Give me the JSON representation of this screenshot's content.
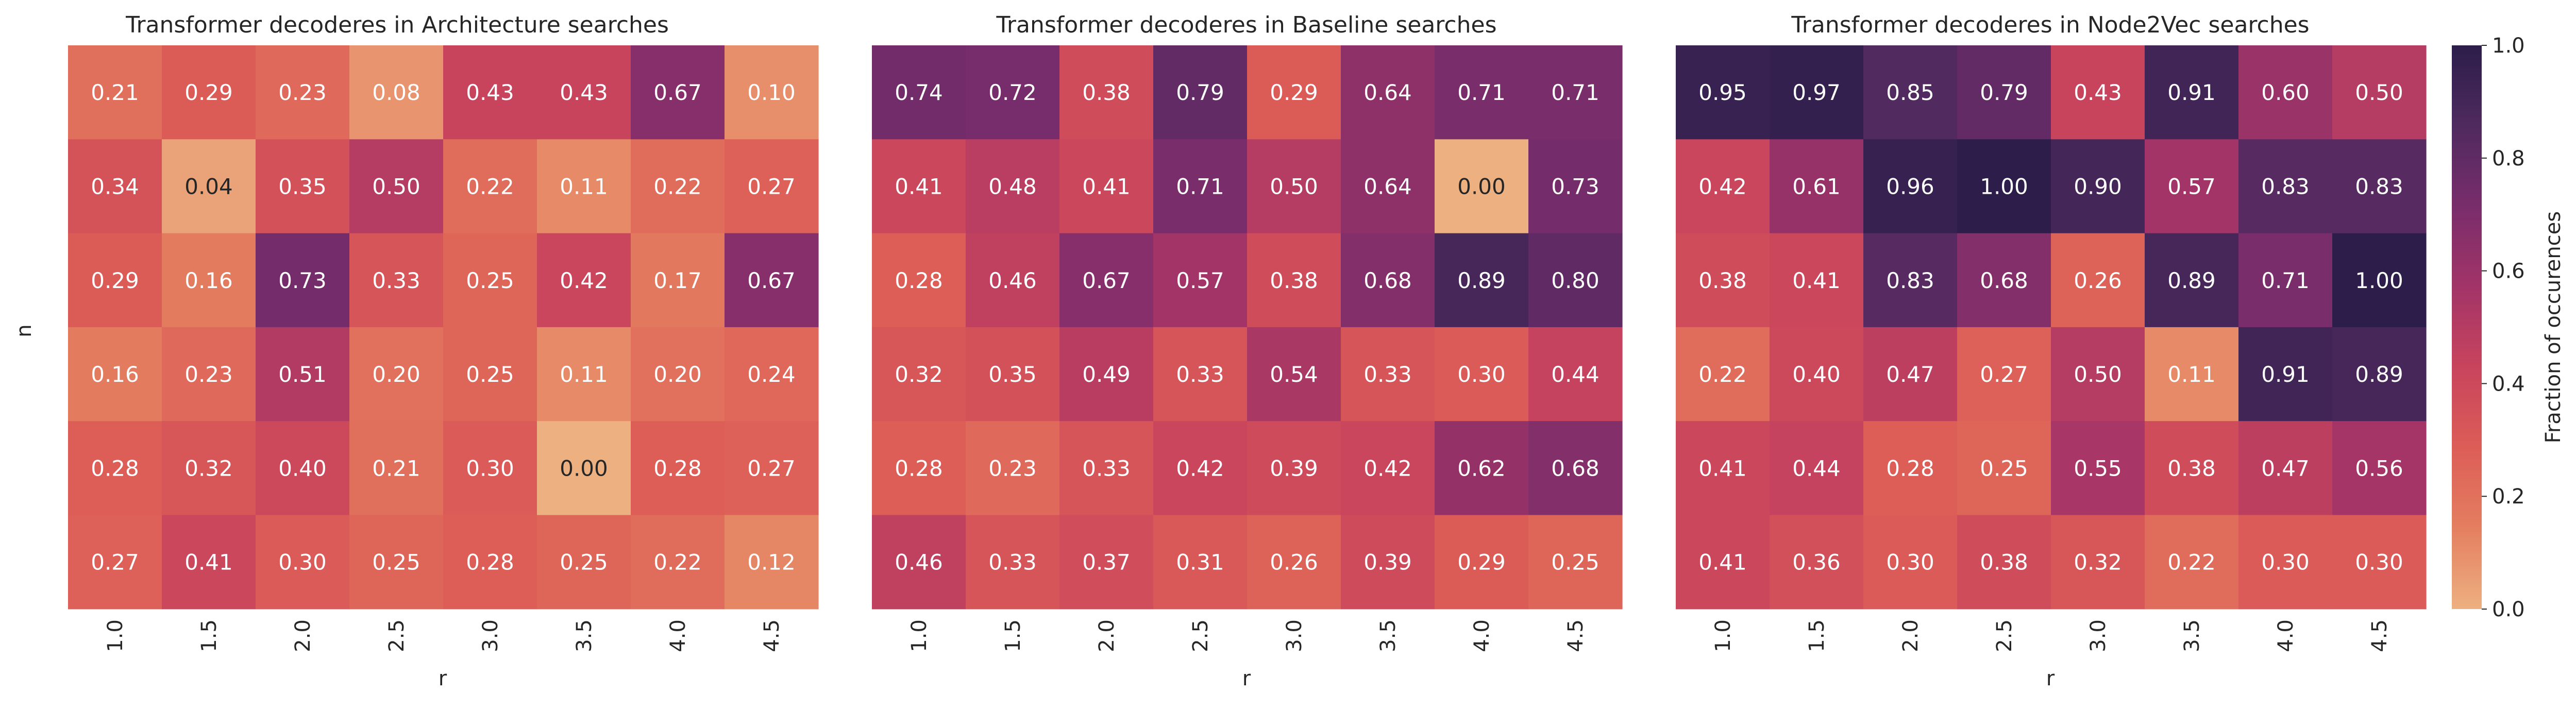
{
  "chart_data": {
    "type": "heatmap",
    "ylabel": "n",
    "colorbar": {
      "label": "Fraction of occurences",
      "min": 0.0,
      "max": 1.0,
      "ticks": [
        "0.0",
        "0.2",
        "0.4",
        "0.6",
        "0.8",
        "1.0"
      ],
      "stops": [
        "#edb081",
        "#e47f60",
        "#dc5d57",
        "#c8445d",
        "#a23467",
        "#792d6b",
        "#4f2a5f",
        "#2c1d4a"
      ]
    },
    "panels": [
      {
        "title": "Transformer decoderes in Architecture searches",
        "xlabel": "r",
        "x": [
          "1.0",
          "1.5",
          "2.0",
          "2.5",
          "3.0",
          "3.5",
          "4.0",
          "4.5"
        ],
        "values": [
          [
            0.21,
            0.29,
            0.23,
            0.08,
            0.43,
            0.43,
            0.67,
            0.1
          ],
          [
            0.34,
            0.04,
            0.35,
            0.5,
            0.22,
            0.11,
            0.22,
            0.27
          ],
          [
            0.29,
            0.16,
            0.73,
            0.33,
            0.25,
            0.42,
            0.17,
            0.67
          ],
          [
            0.16,
            0.23,
            0.51,
            0.2,
            0.25,
            0.11,
            0.2,
            0.24
          ],
          [
            0.28,
            0.32,
            0.4,
            0.21,
            0.3,
            0.0,
            0.28,
            0.27
          ],
          [
            0.27,
            0.41,
            0.3,
            0.25,
            0.28,
            0.25,
            0.22,
            0.12
          ]
        ]
      },
      {
        "title": "Transformer decoderes in Baseline searches",
        "xlabel": "r",
        "x": [
          "1.0",
          "1.5",
          "2.0",
          "2.5",
          "3.0",
          "3.5",
          "4.0",
          "4.5"
        ],
        "values": [
          [
            0.74,
            0.72,
            0.38,
            0.79,
            0.29,
            0.64,
            0.71,
            0.71
          ],
          [
            0.41,
            0.48,
            0.41,
            0.71,
            0.5,
            0.64,
            0.0,
            0.73
          ],
          [
            0.28,
            0.46,
            0.67,
            0.57,
            0.38,
            0.68,
            0.89,
            0.8
          ],
          [
            0.32,
            0.35,
            0.49,
            0.33,
            0.54,
            0.33,
            0.3,
            0.44
          ],
          [
            0.28,
            0.23,
            0.33,
            0.42,
            0.39,
            0.42,
            0.62,
            0.68
          ],
          [
            0.46,
            0.33,
            0.37,
            0.31,
            0.26,
            0.39,
            0.29,
            0.25
          ]
        ]
      },
      {
        "title": "Transformer decoderes in Node2Vec searches",
        "xlabel": "r",
        "x": [
          "1.0",
          "1.5",
          "2.0",
          "2.5",
          "3.0",
          "3.5",
          "4.0",
          "4.5"
        ],
        "values": [
          [
            0.95,
            0.97,
            0.85,
            0.79,
            0.43,
            0.91,
            0.6,
            0.5
          ],
          [
            0.42,
            0.61,
            0.96,
            1.0,
            0.9,
            0.57,
            0.83,
            0.83
          ],
          [
            0.38,
            0.41,
            0.83,
            0.68,
            0.26,
            0.89,
            0.71,
            1.0
          ],
          [
            0.22,
            0.4,
            0.47,
            0.27,
            0.5,
            0.11,
            0.91,
            0.89
          ],
          [
            0.41,
            0.44,
            0.28,
            0.25,
            0.55,
            0.38,
            0.47,
            0.56
          ],
          [
            0.41,
            0.36,
            0.3,
            0.38,
            0.32,
            0.22,
            0.3,
            0.3
          ]
        ]
      }
    ]
  }
}
